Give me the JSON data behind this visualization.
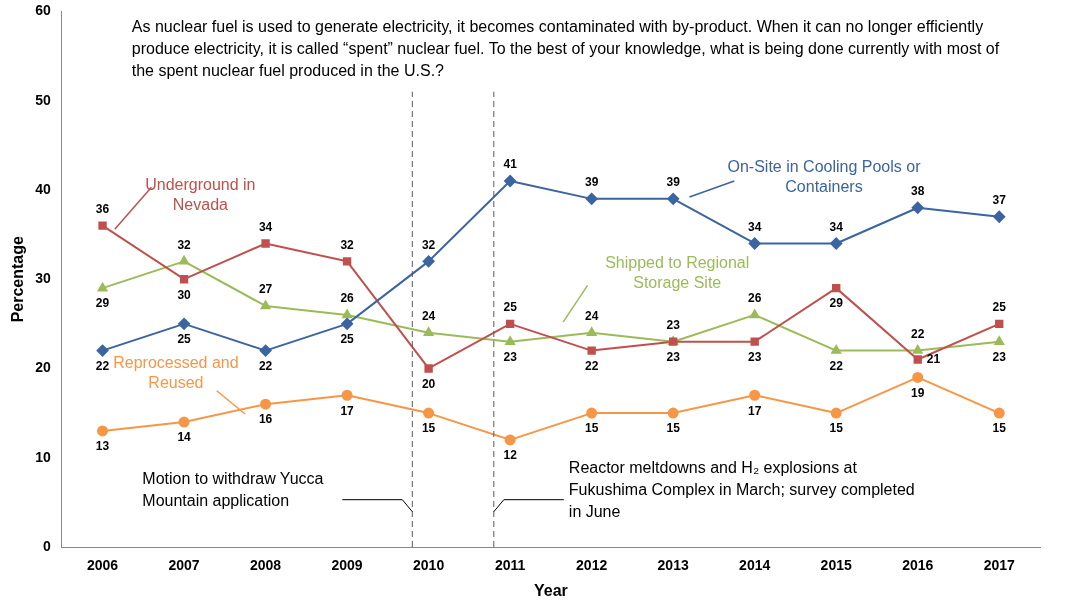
{
  "chart_data": {
    "type": "line",
    "title": "As nuclear fuel is used to generate electricity, it becomes contaminated with by-product. When it can no longer efficiently produce electricity, it is called “spent” nuclear fuel. To the best of your knowledge, what is being done currently with most of the spent nuclear fuel produced in the U.S.?",
    "xlabel": "Year",
    "ylabel": "Percentage",
    "x": [
      2006,
      2007,
      2008,
      2009,
      2010,
      2011,
      2012,
      2013,
      2014,
      2015,
      2016,
      2017
    ],
    "xlim": [
      2005.5,
      2017.5
    ],
    "xticks": [
      2006,
      2007,
      2008,
      2009,
      2010,
      2011,
      2012,
      2013,
      2014,
      2015,
      2016,
      2017
    ],
    "ylim": [
      0,
      60
    ],
    "yticks": [
      0,
      10,
      20,
      30,
      40,
      50,
      60
    ],
    "series": [
      {
        "name": "On-Site in Cooling Pools or Containers",
        "color": "#3b64a0",
        "marker": "diamond",
        "values": [
          22,
          25,
          22,
          25,
          32,
          41,
          39,
          39,
          34,
          34,
          38,
          37
        ]
      },
      {
        "name": "Underground in Nevada",
        "color": "#c0504d",
        "marker": "square",
        "values": [
          36,
          30,
          34,
          32,
          20,
          25,
          22,
          23,
          23,
          29,
          21,
          25
        ]
      },
      {
        "name": "Shipped to Regional Storage Site",
        "color": "#9bbb59",
        "marker": "triangle",
        "values": [
          29,
          32,
          27,
          26,
          24,
          23,
          24,
          23,
          26,
          22,
          22,
          23
        ]
      },
      {
        "name": "Reprocessed and Reused",
        "color": "#f79646",
        "marker": "circle",
        "values": [
          13,
          14,
          16,
          17,
          15,
          12,
          15,
          15,
          17,
          15,
          19,
          15
        ]
      }
    ],
    "ref_lines": [
      {
        "axis": "x",
        "value": 2009.8,
        "label": "Motion to withdraw Yucca Mountain application",
        "line_style": "dashed",
        "color": "#595959"
      },
      {
        "axis": "x",
        "value": 2010.8,
        "label": "Reactor meltdowns and H₂ explosions at Fukushima Complex in March; survey completed in June",
        "line_style": "dashed",
        "color": "#595959"
      }
    ],
    "data_labels": true,
    "grid": false,
    "legend": false,
    "line_style": "solid"
  }
}
